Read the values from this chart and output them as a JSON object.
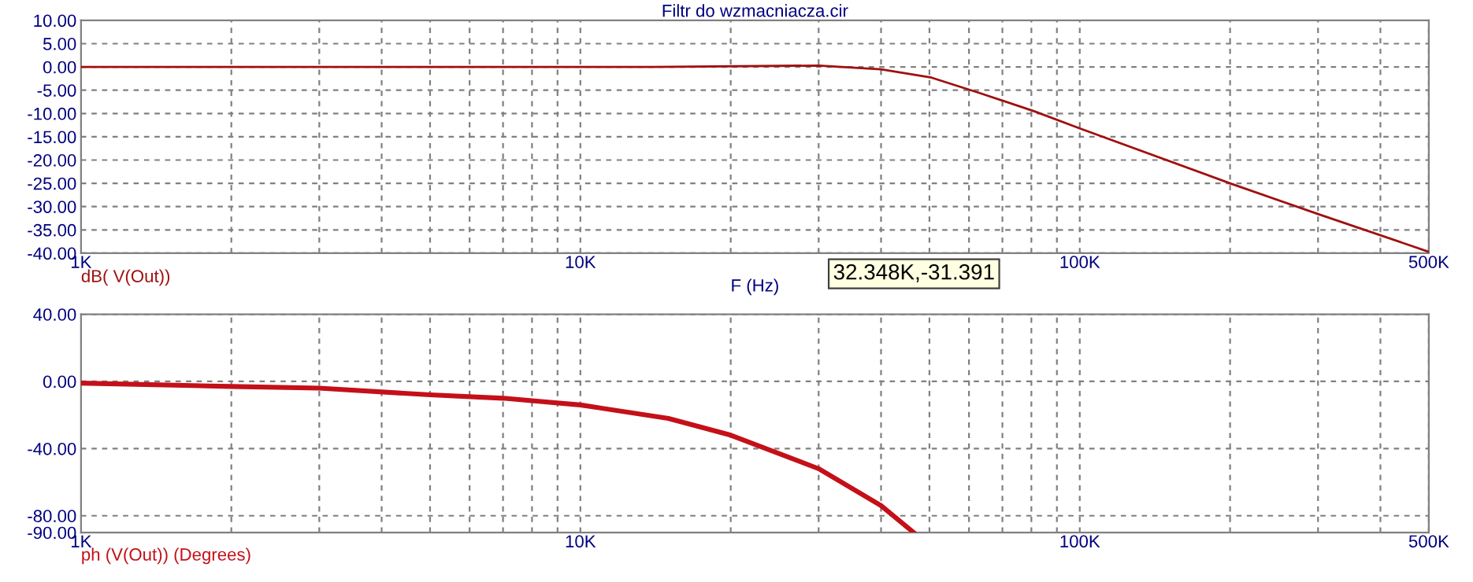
{
  "chart_data": [
    {
      "type": "line",
      "title": "Filtr do wzmacniacza.cir",
      "xlabel": "F (Hz)",
      "log": "x",
      "grid": true,
      "marker": "none",
      "line_style": "solid",
      "tick_labels": "xy",
      "annotations": [
        "32.348K,-31.391"
      ],
      "xlim": [
        1000,
        500000
      ],
      "xticks": [
        {
          "value": 1000,
          "label": "1K"
        },
        {
          "value": 2000,
          "label": null
        },
        {
          "value": 3000,
          "label": null
        },
        {
          "value": 4000,
          "label": null
        },
        {
          "value": 5000,
          "label": null
        },
        {
          "value": 6000,
          "label": null
        },
        {
          "value": 7000,
          "label": null
        },
        {
          "value": 8000,
          "label": null
        },
        {
          "value": 9000,
          "label": null
        },
        {
          "value": 10000,
          "label": "10K"
        },
        {
          "value": 20000,
          "label": null
        },
        {
          "value": 30000,
          "label": null
        },
        {
          "value": 40000,
          "label": null
        },
        {
          "value": 50000,
          "label": null
        },
        {
          "value": 60000,
          "label": null
        },
        {
          "value": 70000,
          "label": null
        },
        {
          "value": 80000,
          "label": null
        },
        {
          "value": 90000,
          "label": null
        },
        {
          "value": 100000,
          "label": "100K"
        },
        {
          "value": 200000,
          "label": null
        },
        {
          "value": 300000,
          "label": null
        },
        {
          "value": 400000,
          "label": null
        },
        {
          "value": 500000,
          "label": "500K"
        }
      ],
      "ylim": [
        -40,
        10
      ],
      "yticks": [
        {
          "value": 10,
          "label": "10.00"
        },
        {
          "value": 5,
          "label": "5.00"
        },
        {
          "value": 0,
          "label": "0.00"
        },
        {
          "value": -5,
          "label": "-5.00"
        },
        {
          "value": -10,
          "label": "-10.00"
        },
        {
          "value": -15,
          "label": "-15.00"
        },
        {
          "value": -20,
          "label": "-20.00"
        },
        {
          "value": -25,
          "label": "-25.00"
        },
        {
          "value": -30,
          "label": "-30.00"
        },
        {
          "value": -35,
          "label": "-35.00"
        },
        {
          "value": -40,
          "label": "-40.00"
        }
      ],
      "series": [
        {
          "name": "dB( V(Out))",
          "color": "#a01010",
          "x": [
            1000,
            14000,
            30000,
            40000,
            50500,
            63000,
            81000,
            100000,
            200000,
            300000,
            500000
          ],
          "values": [
            0,
            0,
            0.3,
            -0.5,
            -2.3,
            -5.6,
            -9.5,
            -13.2,
            -25,
            -31.6,
            -39.7
          ]
        }
      ]
    },
    {
      "type": "line",
      "log": "x",
      "grid": true,
      "marker": "none",
      "line_style": "solid",
      "tick_labels": "xy",
      "xlim": [
        1000,
        500000
      ],
      "xticks": [
        {
          "value": 1000,
          "label": "1K"
        },
        {
          "value": 2000,
          "label": null
        },
        {
          "value": 3000,
          "label": null
        },
        {
          "value": 4000,
          "label": null
        },
        {
          "value": 5000,
          "label": null
        },
        {
          "value": 6000,
          "label": null
        },
        {
          "value": 7000,
          "label": null
        },
        {
          "value": 8000,
          "label": null
        },
        {
          "value": 9000,
          "label": null
        },
        {
          "value": 10000,
          "label": "10K"
        },
        {
          "value": 20000,
          "label": null
        },
        {
          "value": 30000,
          "label": null
        },
        {
          "value": 40000,
          "label": null
        },
        {
          "value": 50000,
          "label": null
        },
        {
          "value": 60000,
          "label": null
        },
        {
          "value": 70000,
          "label": null
        },
        {
          "value": 80000,
          "label": null
        },
        {
          "value": 90000,
          "label": null
        },
        {
          "value": 100000,
          "label": "100K"
        },
        {
          "value": 200000,
          "label": null
        },
        {
          "value": 300000,
          "label": null
        },
        {
          "value": 400000,
          "label": null
        },
        {
          "value": 500000,
          "label": "500K"
        }
      ],
      "ylim": [
        -90,
        40
      ],
      "yticks": [
        {
          "value": 40,
          "label": "40.00"
        },
        {
          "value": 0,
          "label": "0.00"
        },
        {
          "value": -40,
          "label": "-40.00"
        },
        {
          "value": -80,
          "label": "-80.00"
        },
        {
          "value": -90,
          "label": "-90.00"
        }
      ],
      "series": [
        {
          "name": "ph (V(Out)) (Degrees)",
          "color": "#c41018",
          "x": [
            1000,
            2000,
            3000,
            5000,
            7000,
            10000,
            15000,
            20000,
            30000,
            40000,
            46500
          ],
          "values": [
            -1,
            -3,
            -4,
            -8,
            -10,
            -14,
            -22,
            -32,
            -52,
            -74,
            -90
          ]
        }
      ]
    }
  ]
}
